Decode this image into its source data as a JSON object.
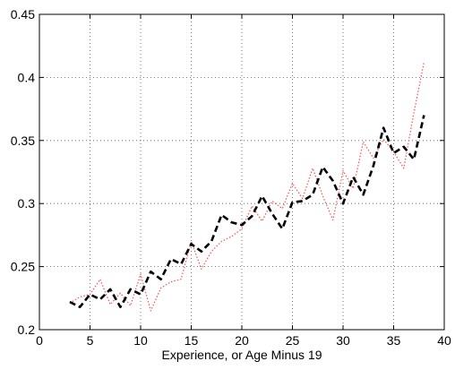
{
  "chart_data": {
    "type": "line",
    "title": "",
    "xlabel": "Experience, or Age Minus 19",
    "ylabel": "",
    "xlim": [
      0,
      40
    ],
    "ylim": [
      0.2,
      0.45
    ],
    "grid": true,
    "x_ticks": [
      0,
      5,
      10,
      15,
      20,
      25,
      30,
      35,
      40
    ],
    "y_ticks": [
      0.2,
      0.25,
      0.3,
      0.35,
      0.4,
      0.45
    ],
    "x_tick_labels": [
      "0",
      "5",
      "10",
      "15",
      "20",
      "25",
      "30",
      "35",
      "40"
    ],
    "y_tick_labels": [
      "0.2",
      "0.25",
      "0.3",
      "0.35",
      "0.4",
      "0.45"
    ],
    "series": [
      {
        "color": "#000000",
        "style": "dashed",
        "x": [
          3,
          4,
          5,
          6,
          7,
          8,
          9,
          10,
          11,
          12,
          13,
          14,
          15,
          16,
          17,
          18,
          19,
          20,
          21,
          22,
          23,
          24,
          25,
          26,
          27,
          28,
          29,
          30,
          31,
          32,
          33,
          34,
          35,
          36,
          37,
          38
        ],
        "values": [
          0.222,
          0.218,
          0.228,
          0.224,
          0.232,
          0.218,
          0.232,
          0.228,
          0.246,
          0.24,
          0.256,
          0.252,
          0.268,
          0.262,
          0.27,
          0.291,
          0.285,
          0.283,
          0.29,
          0.306,
          0.292,
          0.28,
          0.301,
          0.302,
          0.307,
          0.329,
          0.318,
          0.3,
          0.321,
          0.307,
          0.33,
          0.36,
          0.34,
          0.345,
          0.335,
          0.37
        ]
      },
      {
        "color": "#ff4d4d",
        "style": "dotted",
        "x": [
          3,
          4,
          5,
          6,
          7,
          8,
          9,
          10,
          11,
          12,
          13,
          14,
          15,
          16,
          17,
          18,
          19,
          20,
          21,
          22,
          23,
          24,
          25,
          26,
          27,
          28,
          29,
          30,
          31,
          32,
          33,
          34,
          35,
          36,
          37,
          38
        ],
        "values": [
          0.221,
          0.226,
          0.228,
          0.24,
          0.22,
          0.229,
          0.219,
          0.244,
          0.215,
          0.233,
          0.238,
          0.24,
          0.27,
          0.248,
          0.262,
          0.27,
          0.274,
          0.28,
          0.298,
          0.286,
          0.302,
          0.296,
          0.316,
          0.304,
          0.328,
          0.306,
          0.287,
          0.326,
          0.312,
          0.349,
          0.336,
          0.351,
          0.341,
          0.328,
          0.372,
          0.412
        ]
      }
    ]
  }
}
